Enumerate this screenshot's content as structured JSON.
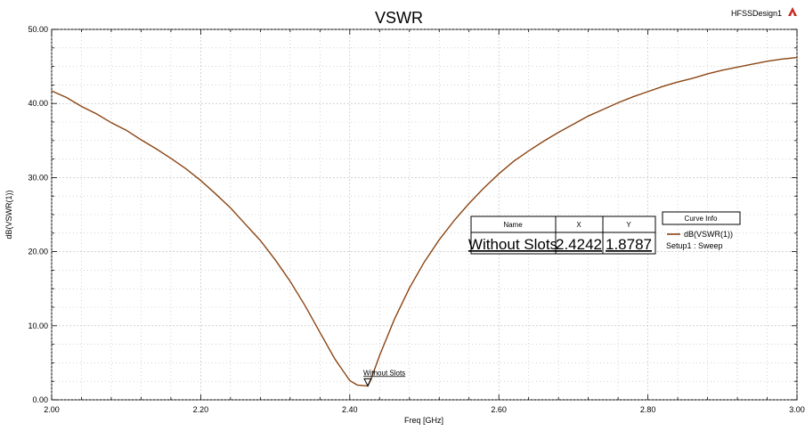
{
  "title": "VSWR",
  "design_label": "HFSSDesign1",
  "brand_icon": "ansys-logo-icon",
  "chart_data": {
    "type": "line",
    "xlabel": "Freq [GHz]",
    "ylabel": "dB(VSWR(1))",
    "xlim": [
      2.0,
      3.0
    ],
    "ylim": [
      0.0,
      50.0
    ],
    "x_ticks": [
      "2.00",
      "2.20",
      "2.40",
      "2.60",
      "2.80",
      "3.00"
    ],
    "y_ticks": [
      "0.00",
      "10.00",
      "20.00",
      "30.00",
      "40.00",
      "50.00"
    ],
    "grid": true,
    "series": [
      {
        "name": "dB(VSWR(1))",
        "color": "#8B4513",
        "points": [
          [
            2.0,
            41.7
          ],
          [
            2.02,
            40.8
          ],
          [
            2.04,
            39.6
          ],
          [
            2.06,
            38.6
          ],
          [
            2.08,
            37.4
          ],
          [
            2.1,
            36.4
          ],
          [
            2.12,
            35.1
          ],
          [
            2.14,
            33.9
          ],
          [
            2.16,
            32.6
          ],
          [
            2.18,
            31.2
          ],
          [
            2.2,
            29.6
          ],
          [
            2.22,
            27.8
          ],
          [
            2.24,
            25.9
          ],
          [
            2.26,
            23.7
          ],
          [
            2.28,
            21.5
          ],
          [
            2.3,
            18.9
          ],
          [
            2.32,
            16.0
          ],
          [
            2.34,
            12.7
          ],
          [
            2.36,
            9.1
          ],
          [
            2.38,
            5.5
          ],
          [
            2.4,
            2.6
          ],
          [
            2.41,
            2.0
          ],
          [
            2.4242,
            1.8787
          ],
          [
            2.43,
            3.2
          ],
          [
            2.44,
            6.0
          ],
          [
            2.46,
            10.9
          ],
          [
            2.48,
            15.1
          ],
          [
            2.5,
            18.6
          ],
          [
            2.52,
            21.6
          ],
          [
            2.54,
            24.2
          ],
          [
            2.56,
            26.5
          ],
          [
            2.58,
            28.6
          ],
          [
            2.6,
            30.5
          ],
          [
            2.62,
            32.2
          ],
          [
            2.64,
            33.6
          ],
          [
            2.66,
            34.9
          ],
          [
            2.68,
            36.1
          ],
          [
            2.7,
            37.2
          ],
          [
            2.72,
            38.3
          ],
          [
            2.74,
            39.2
          ],
          [
            2.76,
            40.1
          ],
          [
            2.78,
            40.9
          ],
          [
            2.8,
            41.6
          ],
          [
            2.82,
            42.3
          ],
          [
            2.84,
            42.9
          ],
          [
            2.86,
            43.4
          ],
          [
            2.88,
            44.0
          ],
          [
            2.9,
            44.5
          ],
          [
            2.92,
            44.9
          ],
          [
            2.94,
            45.3
          ],
          [
            2.96,
            45.7
          ],
          [
            2.98,
            46.0
          ],
          [
            3.0,
            46.2
          ]
        ]
      }
    ],
    "marker": {
      "label": "Without Slots",
      "x": 2.4242,
      "y": 1.8787
    },
    "marker_table": {
      "headers": [
        "Name",
        "X",
        "Y"
      ],
      "row": [
        "Without Slots",
        "2.4242",
        "1.8787"
      ]
    },
    "legend": {
      "title": "Curve Info",
      "entry": "dB(VSWR(1))",
      "sub": "Setup1 : Sweep",
      "placement": "right"
    }
  }
}
